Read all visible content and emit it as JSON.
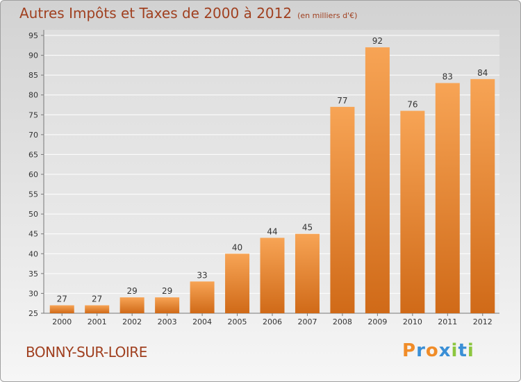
{
  "chart_data": {
    "type": "bar",
    "title": "Autres Impôts et Taxes de 2000 à 2012",
    "subtitle": "(en milliers d'€)",
    "categories": [
      "2000",
      "2001",
      "2002",
      "2003",
      "2004",
      "2005",
      "2006",
      "2007",
      "2008",
      "2009",
      "2010",
      "2011",
      "2012"
    ],
    "values": [
      27,
      27,
      29,
      29,
      33,
      40,
      44,
      45,
      77,
      92,
      76,
      83,
      84
    ],
    "ylim": [
      25,
      95
    ],
    "yticks": [
      25,
      30,
      35,
      40,
      45,
      50,
      55,
      60,
      65,
      70,
      75,
      80,
      85,
      90,
      95
    ],
    "xlabel": "",
    "ylabel": "",
    "grid": true,
    "bar_color": "#f08c28"
  },
  "location": "BONNY-SUR-LOIRE",
  "logo": {
    "text": "Proxiti",
    "letter_colors": [
      "#f08c28",
      "#3a8fd6",
      "#f08c28",
      "#3a8fd6",
      "#8cc63f",
      "#3a8fd6",
      "#8cc63f"
    ]
  },
  "colors": {
    "title": "#a04020",
    "grid": "#ffffff",
    "axis": "#777777"
  }
}
